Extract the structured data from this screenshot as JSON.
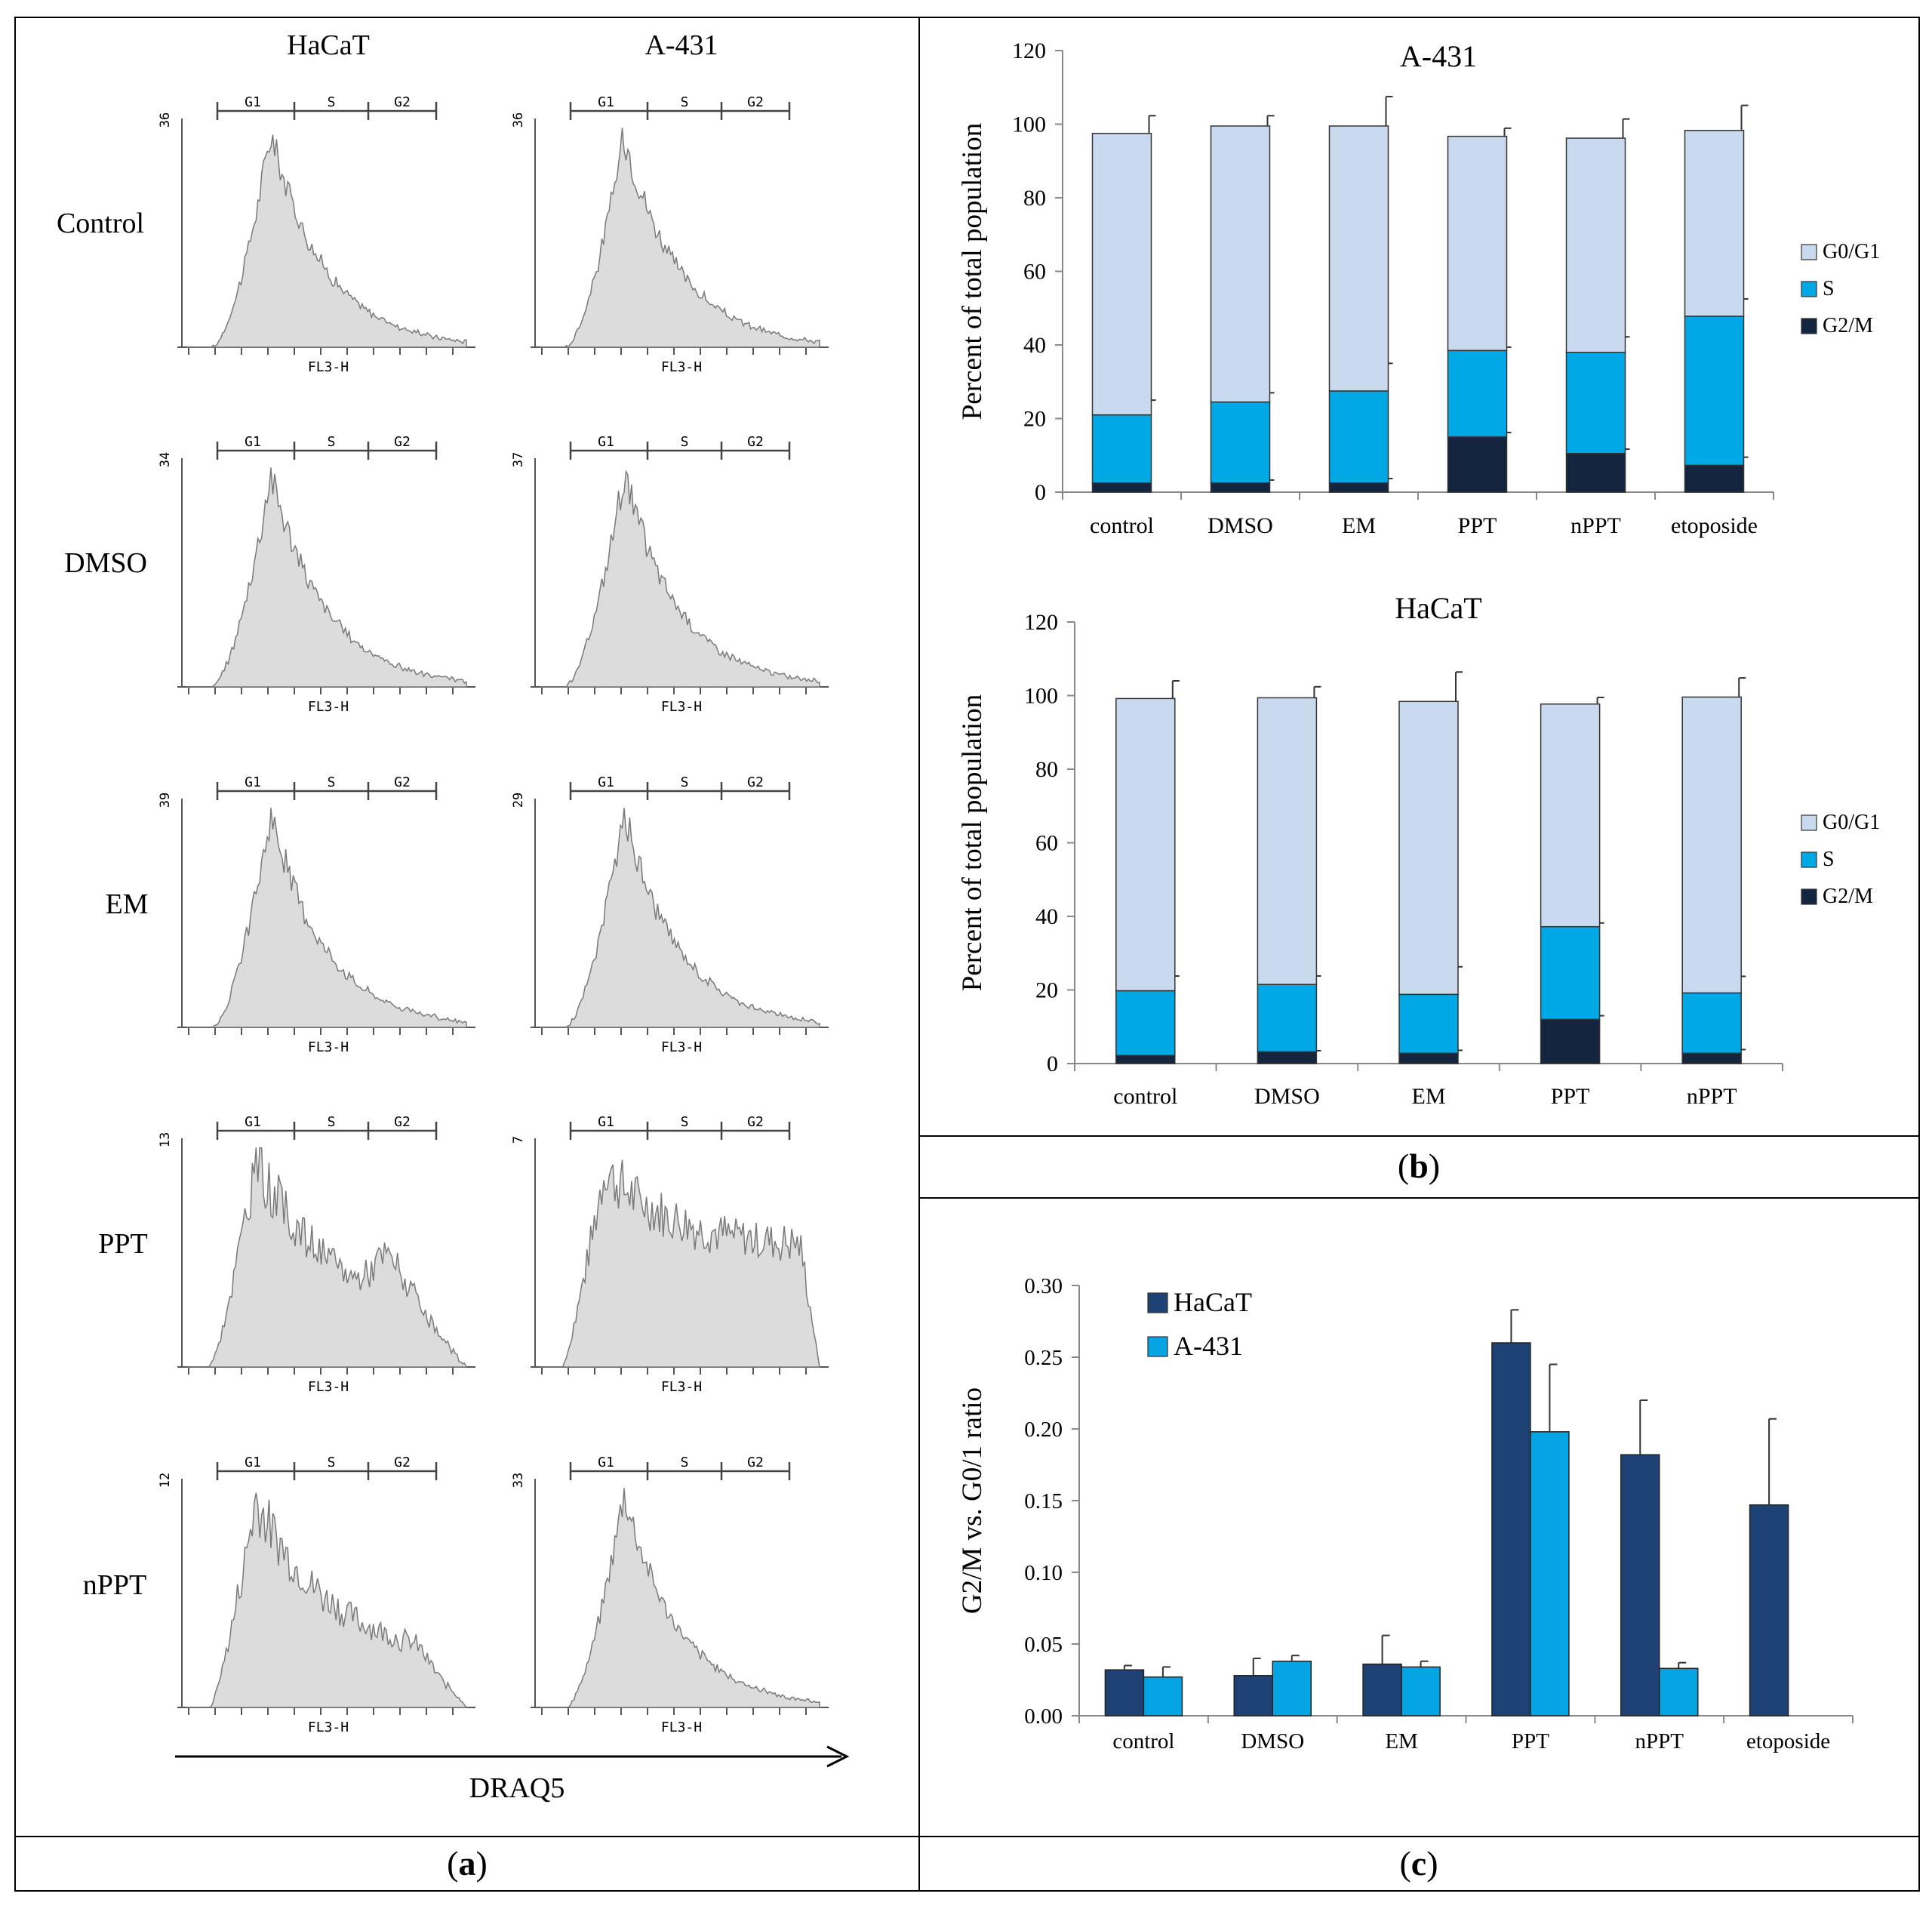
{
  "panels": {
    "a": {
      "label_open": "(",
      "label_letter": "a",
      "label_close": ")"
    },
    "b": {
      "label_open": "(",
      "label_letter": "b",
      "label_close": ")"
    },
    "c": {
      "label_open": "(",
      "label_letter": "c",
      "label_close": ")"
    }
  },
  "histograms": {
    "columns": [
      "HaCaT",
      "A-431"
    ],
    "rows": [
      "Control",
      "DMSO",
      "EM",
      "PPT",
      "nPPT"
    ],
    "gates": [
      "G1",
      "S",
      "G2"
    ],
    "xaxis_label": "FL3-H",
    "bottom_label": "DRAQ5",
    "ymax_labels": [
      [
        "36",
        "36"
      ],
      [
        "34",
        "37"
      ],
      [
        "39",
        "29"
      ],
      [
        "13",
        "7"
      ],
      [
        "12",
        "33"
      ]
    ],
    "profiles": [
      [
        "a",
        "a"
      ],
      [
        "a",
        "a"
      ],
      [
        "a",
        "a"
      ],
      [
        "b",
        "c"
      ],
      [
        "d",
        "a"
      ]
    ]
  },
  "chart_data": [
    {
      "id": "b-top",
      "type": "bar",
      "stacked": true,
      "title": "A-431",
      "ylabel": "Percent of total population",
      "ylim": [
        0,
        120
      ],
      "yticks": [
        0,
        20,
        40,
        60,
        80,
        100,
        120
      ],
      "categories": [
        "control",
        "DMSO",
        "EM",
        "PPT",
        "nPPT",
        "etoposide"
      ],
      "series": [
        {
          "name": "G2/M",
          "color": "#13253f",
          "values": [
            2.5,
            2.5,
            2.5,
            15,
            10.5,
            7.3
          ],
          "errors": [
            0,
            0.8,
            1.2,
            1.2,
            1.2,
            2.2
          ]
        },
        {
          "name": "S",
          "color": "#00a8e6",
          "values": [
            18.5,
            22,
            25,
            23.5,
            27.5,
            40.5
          ],
          "errors": [
            4,
            2.5,
            7.5,
            0.9,
            4.2,
            4.7
          ]
        },
        {
          "name": "G0/G1",
          "color": "#c9d9ee",
          "values": [
            76.5,
            75,
            72,
            58.2,
            58.2,
            50.5
          ],
          "errors": [
            4.8,
            2.8,
            8,
            2.2,
            5.2,
            6.8
          ]
        }
      ],
      "legend": [
        "G0/G1",
        "S",
        "G2/M"
      ],
      "legend_position": "right"
    },
    {
      "id": "b-bottom",
      "type": "bar",
      "stacked": true,
      "title": "HaCaT",
      "ylabel": "Percent of total population",
      "ylim": [
        0,
        120
      ],
      "yticks": [
        0,
        20,
        40,
        60,
        80,
        100,
        120
      ],
      "categories": [
        "control",
        "DMSO",
        "EM",
        "PPT",
        "nPPT"
      ],
      "series": [
        {
          "name": "G2/M",
          "color": "#13253f",
          "values": [
            2.2,
            3.2,
            2.8,
            12,
            2.8
          ],
          "errors": [
            0,
            0.3,
            0.8,
            1,
            1
          ]
        },
        {
          "name": "S",
          "color": "#00a8e6",
          "values": [
            17.6,
            18.3,
            16,
            25.2,
            16.4
          ],
          "errors": [
            4,
            2.3,
            7.5,
            1,
            4.5
          ]
        },
        {
          "name": "G0/G1",
          "color": "#c9d9ee",
          "values": [
            79.4,
            77.9,
            79.6,
            60.5,
            80.4
          ],
          "errors": [
            4.8,
            3,
            8,
            1.8,
            5.2
          ]
        }
      ],
      "legend": [
        "G0/G1",
        "S",
        "G2/M"
      ],
      "legend_position": "right"
    },
    {
      "id": "c",
      "type": "bar",
      "stacked": false,
      "title": "",
      "ylabel": "G2/M vs. G0/1 ratio",
      "ylim": [
        0,
        0.3
      ],
      "yticks": [
        "0.00",
        "0.05",
        "0.10",
        "0.15",
        "0.20",
        "0.25",
        "0.30"
      ],
      "categories": [
        "control",
        "DMSO",
        "EM",
        "PPT",
        "nPPT",
        "etoposide"
      ],
      "series": [
        {
          "name": "HaCaT",
          "color": "#1f4275",
          "values": [
            0.032,
            0.028,
            0.036,
            0.26,
            0.182,
            0.147
          ],
          "errors": [
            0.003,
            0.012,
            0.02,
            0.023,
            0.038,
            0.06
          ]
        },
        {
          "name": "A-431",
          "color": "#05a5e4",
          "values": [
            0.027,
            0.038,
            0.034,
            0.198,
            0.033,
            null
          ],
          "errors": [
            0.007,
            0.004,
            0.004,
            0.047,
            0.004,
            null
          ]
        }
      ],
      "legend": [
        "HaCaT",
        "A-431"
      ],
      "legend_position": "top-left"
    }
  ]
}
